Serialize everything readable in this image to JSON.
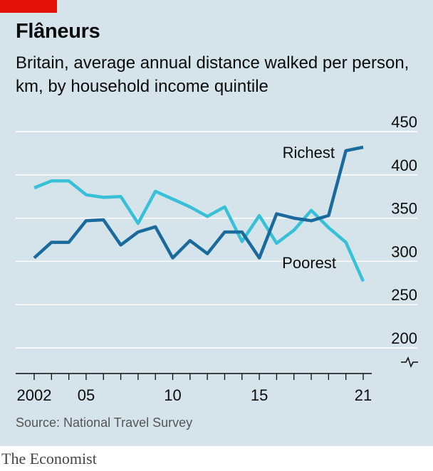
{
  "header": {
    "title": "Flâneurs",
    "subtitle": "Britain, average annual distance walked per person, km, by household income quintile"
  },
  "footer": {
    "source": "Source: National Travel Survey",
    "brand": "The Economist"
  },
  "colors": {
    "background": "#d5e4ea",
    "richest": "#1a6b9c",
    "poorest": "#38c1d6",
    "gridline": "#ffffff",
    "accent": "#e3120b"
  },
  "chart_data": {
    "type": "line",
    "x": [
      2002,
      2003,
      2004,
      2005,
      2006,
      2007,
      2008,
      2009,
      2010,
      2011,
      2012,
      2013,
      2014,
      2015,
      2016,
      2017,
      2018,
      2019,
      2020,
      2021
    ],
    "series": [
      {
        "name": "Richest",
        "values": [
          304,
          322,
          322,
          347,
          348,
          319,
          334,
          340,
          304,
          324,
          309,
          334,
          334,
          304,
          355,
          350,
          347,
          353,
          428,
          432
        ]
      },
      {
        "name": "Poorest",
        "values": [
          385,
          393,
          393,
          377,
          374,
          375,
          344,
          381,
          372,
          363,
          352,
          363,
          323,
          353,
          321,
          336,
          359,
          339,
          322,
          277
        ]
      }
    ],
    "ylim": [
      200,
      450
    ],
    "y_ticks": [
      450,
      400,
      350,
      300,
      250,
      200
    ],
    "x_ticks": [
      {
        "value": 2002,
        "label": "2002"
      },
      {
        "value": 2005,
        "label": "05"
      },
      {
        "value": 2010,
        "label": "10"
      },
      {
        "value": 2015,
        "label": "15"
      },
      {
        "value": 2021,
        "label": "21"
      }
    ],
    "y_axis_position": "right",
    "grid": true,
    "legend": "inline labels"
  }
}
